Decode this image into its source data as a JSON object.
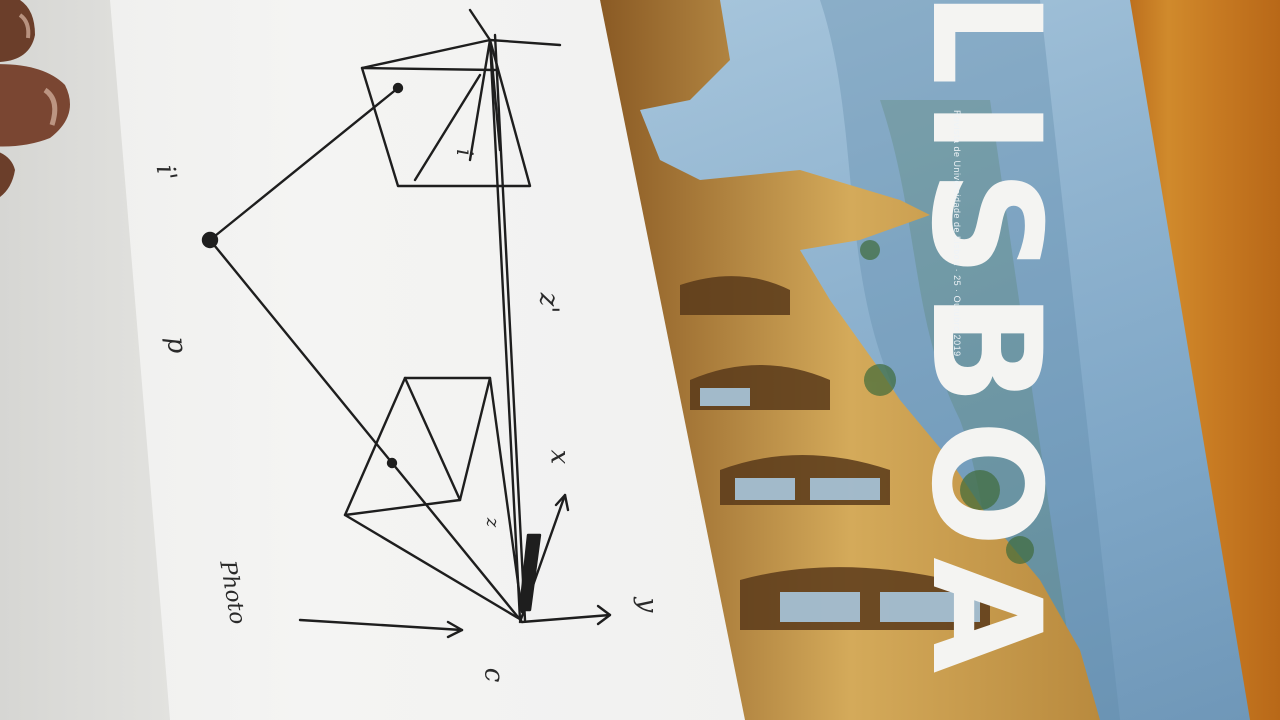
{
  "scene": {
    "description_kind": "photo",
    "colors": {
      "paper": "#f2f2f0",
      "ink": "#1e1e1e",
      "table": "#c9781f",
      "magazine_sky": "#8fb3cf",
      "ruin_stone": "#c79a4a",
      "title_text": "#f4f4f2"
    }
  },
  "sketch": {
    "labels": {
      "i_prime": "i'",
      "p_left": "p",
      "z_prime": "z'",
      "x_label": "x",
      "y_label": "y",
      "c_label": "c",
      "photo_label": "Photo",
      "z_small": "z",
      "i_top": "i"
    }
  },
  "magazine": {
    "title": "LISBOA",
    "subtitle": "Revista de Universidade de Lisboa · 25 · Outubro 2019"
  }
}
